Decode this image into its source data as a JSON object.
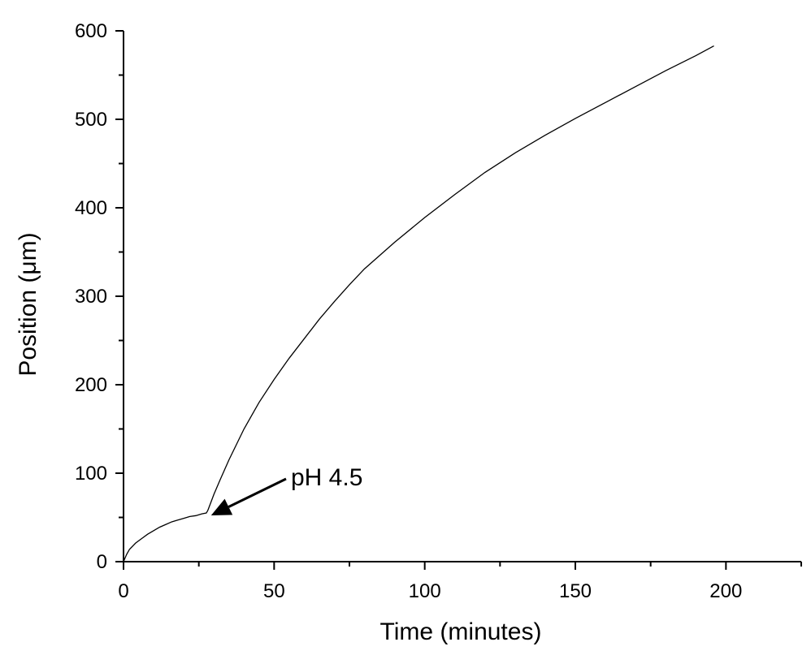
{
  "chart_data": {
    "type": "line",
    "title": "",
    "xlabel": "Time (minutes)",
    "ylabel": "Position (μm)",
    "xlim": [
      0,
      225
    ],
    "ylim": [
      0,
      600
    ],
    "xticks": [
      0,
      50,
      100,
      150,
      200
    ],
    "yticks": [
      0,
      100,
      200,
      300,
      400,
      500,
      600
    ],
    "grid": false,
    "legend": "none",
    "series": [
      {
        "x": [
          0,
          1,
          2,
          4,
          6,
          8,
          10,
          12,
          14,
          16,
          18,
          20,
          22,
          24,
          26,
          27.5,
          28,
          29,
          30,
          32,
          35,
          40,
          45,
          50,
          55,
          60,
          65,
          70,
          75,
          80,
          90,
          100,
          110,
          120,
          130,
          140,
          150,
          160,
          170,
          180,
          190,
          196
        ],
        "y": [
          0,
          8,
          14,
          21,
          26,
          31,
          35,
          39,
          42,
          45,
          47,
          49,
          51,
          52,
          54,
          55,
          58,
          67,
          76,
          92,
          115,
          150,
          180,
          206,
          230,
          252,
          274,
          294,
          313,
          331,
          361,
          389,
          415,
          440,
          462,
          482,
          501,
          519,
          537,
          555,
          572,
          583
        ]
      }
    ],
    "annotations": [
      {
        "text": "pH 4.5",
        "x": 28,
        "y": 55
      }
    ]
  }
}
